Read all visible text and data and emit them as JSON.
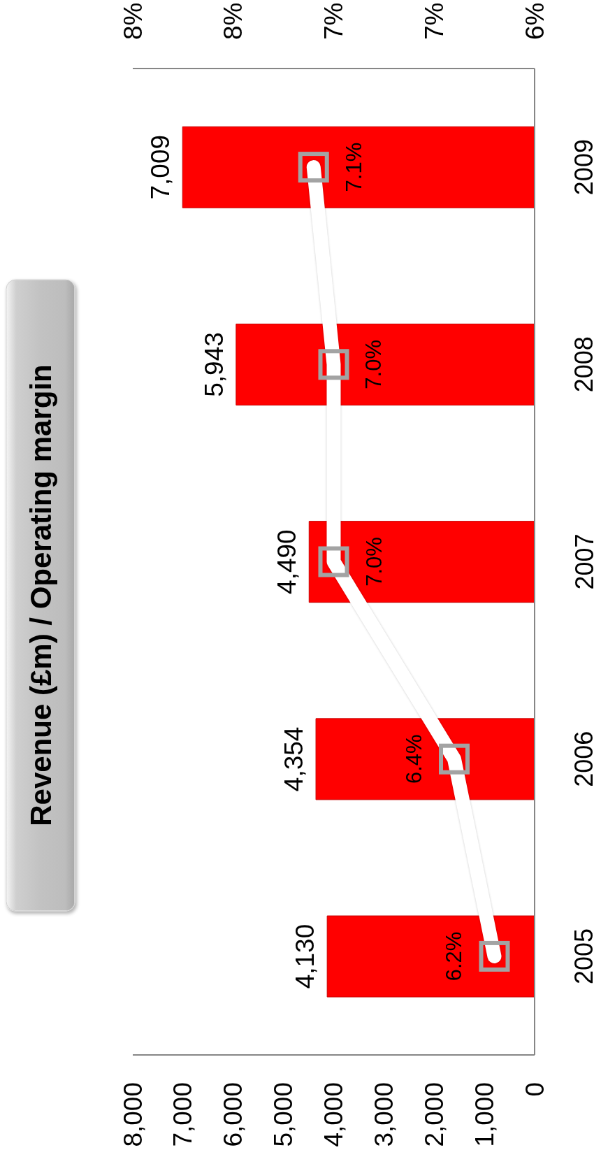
{
  "chart_data": {
    "type": "bar",
    "orientation": "horizontal",
    "title": "Revenue (£m) / Operating margin",
    "categories": [
      "2009",
      "2008",
      "2007",
      "2006",
      "2005"
    ],
    "series": [
      {
        "color": "#ff0000",
        "values": [
          7009,
          5943,
          4490,
          4354,
          4130
        ],
        "value_labels": [
          "7,009",
          "5,943",
          "4,490",
          "4,354",
          "4,130"
        ]
      },
      {
        "type": "line",
        "axis": "x2",
        "color": "#ffffff",
        "values": [
          7.1,
          7.0,
          7.0,
          6.4,
          6.2
        ],
        "value_labels": [
          "7.1%",
          "7.0%",
          "7.0%",
          "6.4%",
          "6.2%"
        ]
      }
    ],
    "xlim": [
      8000,
      0
    ],
    "xticks": [
      {
        "value": 8000,
        "label": "8,000"
      },
      {
        "value": 7000,
        "label": "7,000"
      },
      {
        "value": 6000,
        "label": "6,000"
      },
      {
        "value": 5000,
        "label": "5,000"
      },
      {
        "value": 4000,
        "label": "4,000"
      },
      {
        "value": 3000,
        "label": "3,000"
      },
      {
        "value": 2000,
        "label": "2,000"
      },
      {
        "value": 1000,
        "label": "1,000"
      },
      0
    ],
    "x2lim": [
      8,
      6
    ],
    "x2ticks": [
      {
        "value": 8,
        "label": "8%"
      },
      {
        "value": 7.5,
        "label": "8%"
      },
      {
        "value": 7,
        "label": "7%"
      },
      {
        "value": 6.5,
        "label": "7%"
      },
      {
        "value": 6,
        "label": "6%"
      }
    ],
    "marker": "square"
  }
}
